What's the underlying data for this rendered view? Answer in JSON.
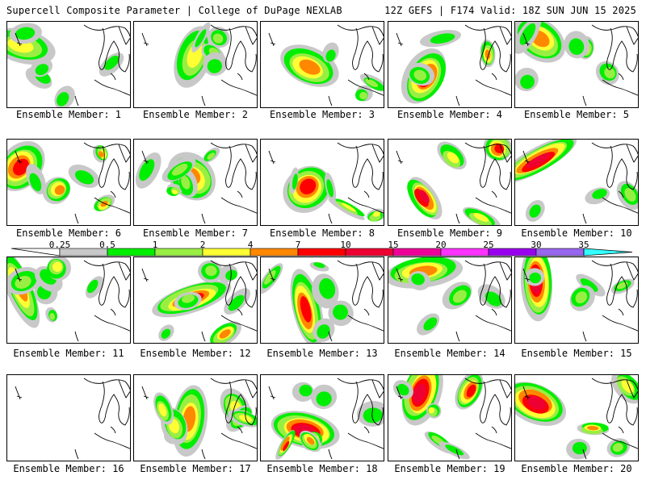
{
  "header": {
    "left_title": "Supercell Composite Parameter | College of DuPage NEXLAB",
    "right_title": "12Z GEFS | F174 Valid: 18Z SUN JUN 15 2025"
  },
  "colorbar": {
    "thresholds": [
      "0.25",
      "0.5",
      "1",
      "2",
      "4",
      "7",
      "10",
      "15",
      "20",
      "25",
      "30",
      "35"
    ],
    "colors": [
      "#c8c8c8",
      "#00ee00",
      "#99ee44",
      "#ffff33",
      "#ff8800",
      "#ff0000",
      "#ee0033",
      "#ee0099",
      "#ff33ff",
      "#9900ee",
      "#9966ee",
      "#33ffff"
    ]
  },
  "members": [
    {
      "label": "Ensemble Member: 1",
      "max_level": 3
    },
    {
      "label": "Ensemble Member: 2",
      "max_level": 3
    },
    {
      "label": "Ensemble Member: 3",
      "max_level": 4
    },
    {
      "label": "Ensemble Member: 4",
      "max_level": 5
    },
    {
      "label": "Ensemble Member: 5",
      "max_level": 4
    },
    {
      "label": "Ensemble Member: 6",
      "max_level": 5
    },
    {
      "label": "Ensemble Member: 7",
      "max_level": 4
    },
    {
      "label": "Ensemble Member: 8",
      "max_level": 5
    },
    {
      "label": "Ensemble Member: 9",
      "max_level": 6
    },
    {
      "label": "Ensemble Member: 10",
      "max_level": 6
    },
    {
      "label": "Ensemble Member: 11",
      "max_level": 4
    },
    {
      "label": "Ensemble Member: 12",
      "max_level": 5
    },
    {
      "label": "Ensemble Member: 13",
      "max_level": 5
    },
    {
      "label": "Ensemble Member: 14",
      "max_level": 4
    },
    {
      "label": "Ensemble Member: 15",
      "max_level": 6
    },
    {
      "label": "Ensemble Member: 16",
      "max_level": 0
    },
    {
      "label": "Ensemble Member: 17",
      "max_level": 4
    },
    {
      "label": "Ensemble Member: 18",
      "max_level": 6
    },
    {
      "label": "Ensemble Member: 19",
      "max_level": 6
    },
    {
      "label": "Ensemble Member: 20",
      "max_level": 6
    }
  ]
}
